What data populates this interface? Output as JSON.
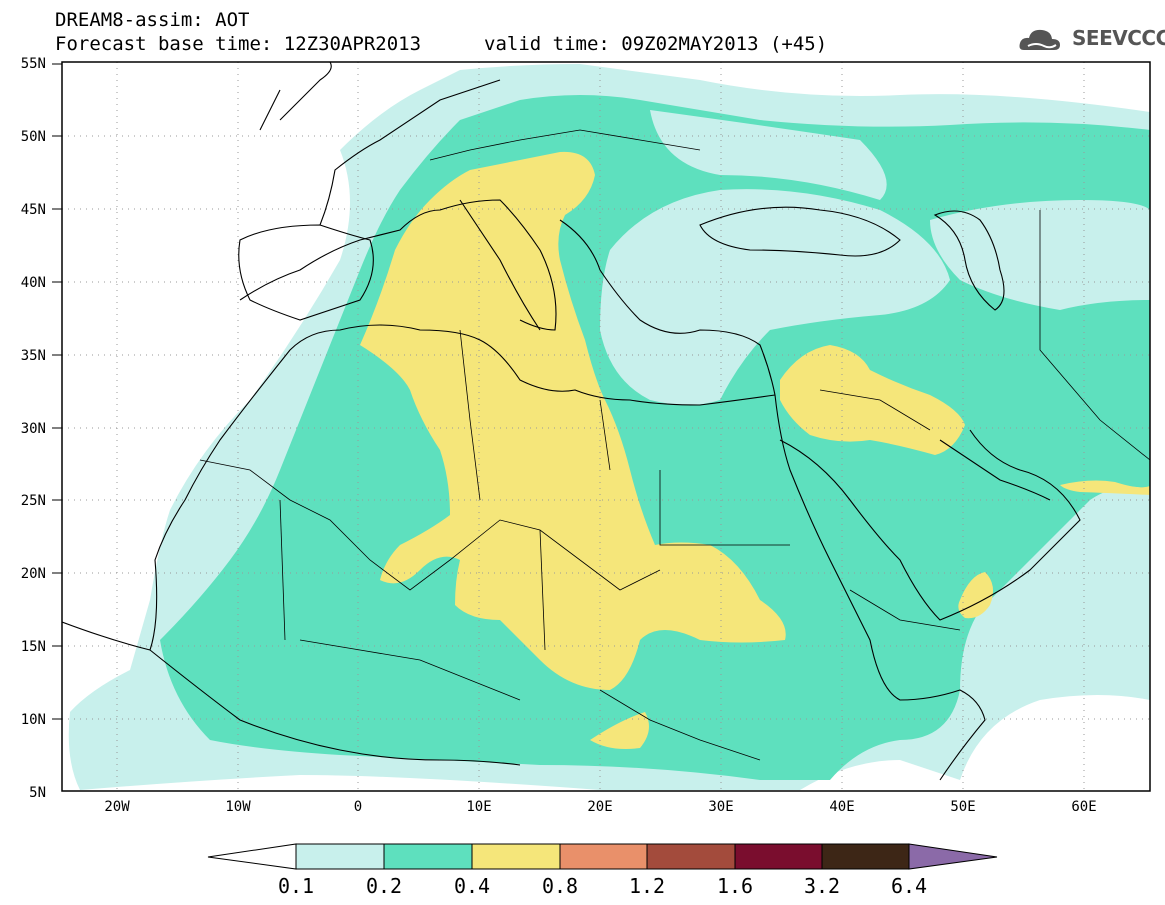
{
  "header": {
    "title_line1": "DREAM8-assim: AOT",
    "title_line2": "Forecast base time: 12Z30APR2013",
    "valid_time": "valid time: 09Z02MAY2013 (+45)",
    "logo_text": "SEEVCCC",
    "logo_icon": "cloud-icon"
  },
  "map": {
    "projection": "lat-lon",
    "lon_range": [
      -25,
      65
    ],
    "lat_range": [
      5,
      55
    ],
    "lat_ticks": [
      "55N",
      "50N",
      "45N",
      "40N",
      "35N",
      "30N",
      "25N",
      "20N",
      "15N",
      "10N",
      "5N"
    ],
    "lon_ticks": [
      "20W",
      "10W",
      "0",
      "10E",
      "20E",
      "30E",
      "40E",
      "50E",
      "60E"
    ],
    "grid": "dotted"
  },
  "legend": {
    "labels": [
      "0.1",
      "0.2",
      "0.4",
      "0.8",
      "1.2",
      "1.6",
      "3.2",
      "6.4"
    ],
    "colors": [
      "#ffffff",
      "#c8f0ec",
      "#5ee0be",
      "#f5e67a",
      "#e9906a",
      "#a34b3c",
      "#7a0d2e",
      "#3d2616",
      "#8b6aa8"
    ]
  }
}
